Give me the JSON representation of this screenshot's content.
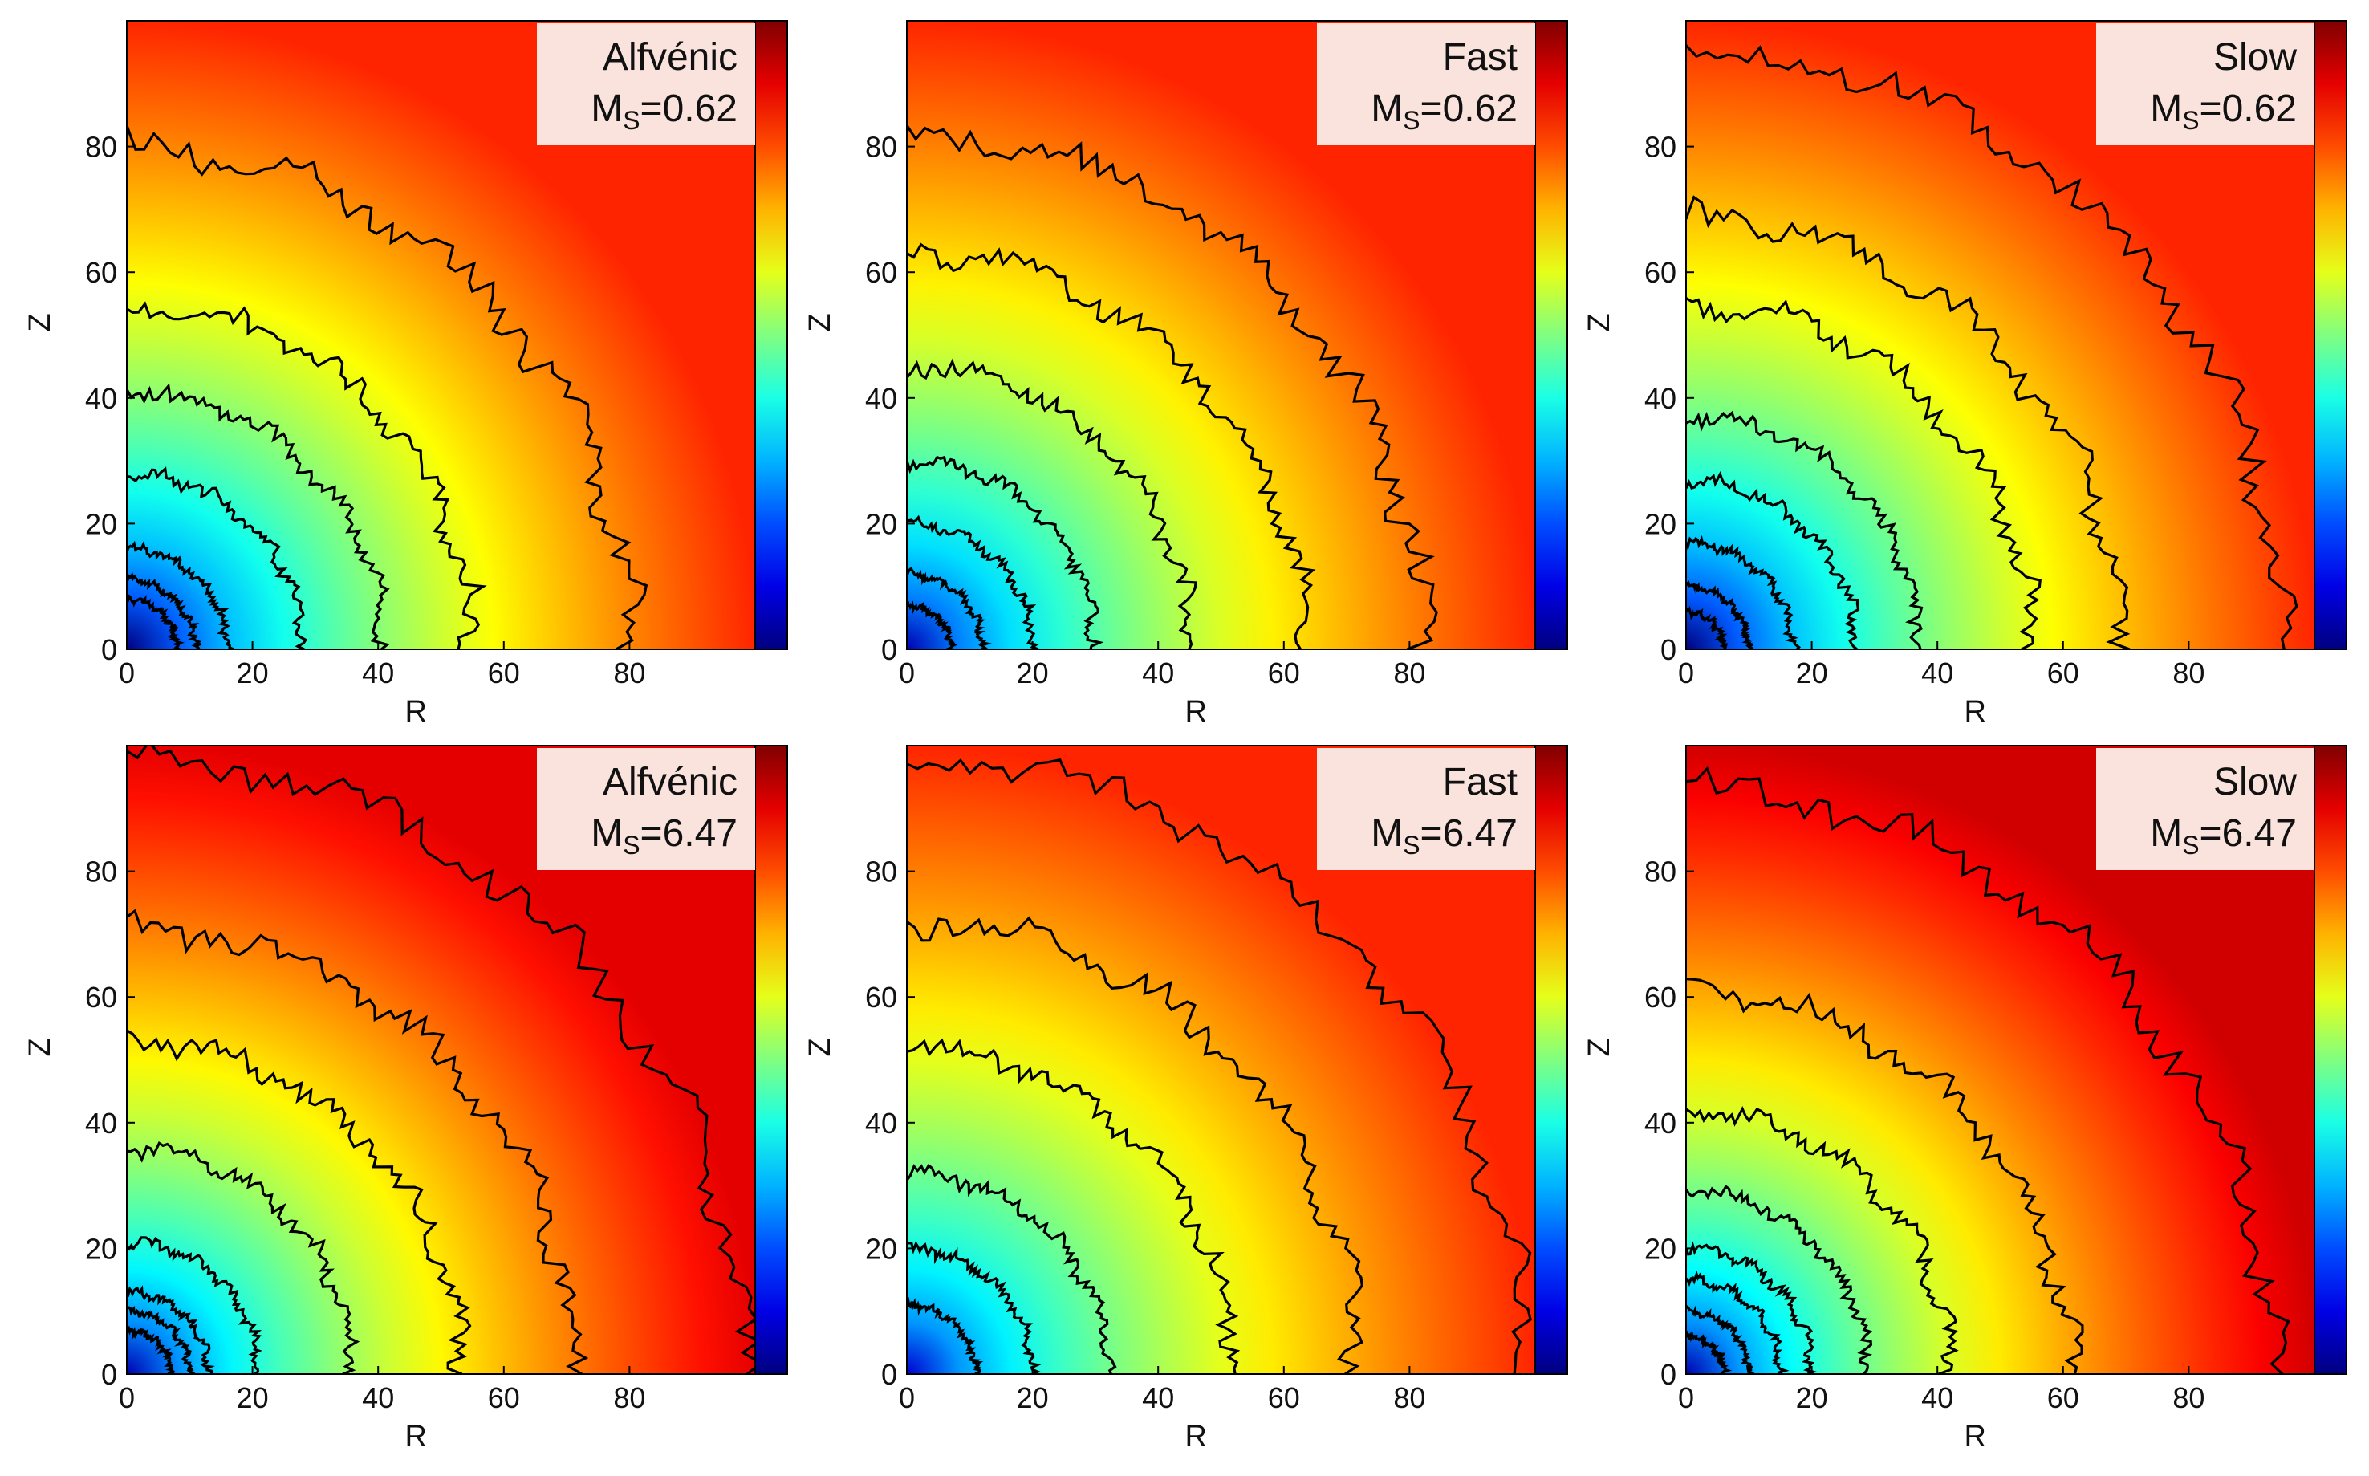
{
  "figure": {
    "kind": "contour-map-grid"
  },
  "chart_data": [
    {
      "type": "heatmap",
      "title": "Alfvénic",
      "annotation_label": "Alfvénic",
      "annotation_ms_prefix": "M",
      "annotation_ms_sub": "S",
      "annotation_ms_value": "=0.62",
      "mach": 0.62,
      "xlabel": "R",
      "ylabel": "Z",
      "xlim": [
        0,
        100
      ],
      "ylim": [
        0,
        100
      ],
      "xticks": [
        0,
        20,
        40,
        60,
        80
      ],
      "yticks": [
        0,
        20,
        40,
        60,
        80
      ],
      "colormap": "jet",
      "colorbar": true,
      "center_level": 0.0,
      "far_level": 0.84,
      "contour_radii": [
        8,
        11,
        16,
        28,
        41,
        55,
        80
      ]
    },
    {
      "type": "heatmap",
      "title": "Fast",
      "annotation_label": "Fast",
      "annotation_ms_prefix": "M",
      "annotation_ms_sub": "S",
      "annotation_ms_value": "=0.62",
      "mach": 0.62,
      "xlabel": "R",
      "ylabel": "Z",
      "xlim": [
        0,
        100
      ],
      "ylim": [
        0,
        100
      ],
      "xticks": [
        0,
        20,
        40,
        60,
        80
      ],
      "yticks": [
        0,
        20,
        40,
        60,
        80
      ],
      "colormap": "jet",
      "colorbar": true,
      "center_level": 0.05,
      "far_level": 0.84,
      "contour_radii": [
        7,
        12,
        20,
        30,
        45,
        63,
        82
      ]
    },
    {
      "type": "heatmap",
      "title": "Slow",
      "annotation_label": "Slow",
      "annotation_ms_prefix": "M",
      "annotation_ms_sub": "S",
      "annotation_ms_value": "=0.62",
      "mach": 0.62,
      "xlabel": "R",
      "ylabel": "Z",
      "xlim": [
        0,
        100
      ],
      "ylim": [
        0,
        100
      ],
      "xticks": [
        0,
        20,
        40,
        60,
        80
      ],
      "yticks": [
        0,
        20,
        40,
        60,
        80
      ],
      "colormap": "jet",
      "colorbar": true,
      "center_level": 0.0,
      "far_level": 0.84,
      "contour_radii": [
        6,
        10,
        17,
        27,
        37,
        55,
        69,
        95
      ]
    },
    {
      "type": "heatmap",
      "title": "Alfvénic",
      "annotation_label": "Alfvénic",
      "annotation_ms_prefix": "M",
      "annotation_ms_sub": "S",
      "annotation_ms_value": "=6.47",
      "mach": 6.47,
      "xlabel": "R",
      "ylabel": "Z",
      "xlim": [
        0,
        100
      ],
      "ylim": [
        0,
        100
      ],
      "xticks": [
        0,
        20,
        40,
        60,
        80
      ],
      "yticks": [
        0,
        20,
        40,
        60,
        80
      ],
      "colormap": "jet",
      "colorbar": true,
      "center_level": 0.05,
      "far_level": 0.9,
      "contour_radii": [
        7,
        10,
        13,
        21,
        36,
        53,
        71,
        98
      ]
    },
    {
      "type": "heatmap",
      "title": "Fast",
      "annotation_label": "Fast",
      "annotation_ms_prefix": "M",
      "annotation_ms_sub": "S",
      "annotation_ms_value": "=6.47",
      "mach": 6.47,
      "xlabel": "R",
      "ylabel": "Z",
      "xlim": [
        0,
        100
      ],
      "ylim": [
        0,
        100
      ],
      "xticks": [
        0,
        20,
        40,
        60,
        80
      ],
      "yticks": [
        0,
        20,
        40,
        60,
        80
      ],
      "colormap": "jet",
      "colorbar": true,
      "center_level": 0.08,
      "far_level": 0.84,
      "contour_radii": [
        11,
        20,
        32,
        52,
        72,
        98
      ]
    },
    {
      "type": "heatmap",
      "title": "Slow",
      "annotation_label": "Slow",
      "annotation_ms_prefix": "M",
      "annotation_ms_sub": "S",
      "annotation_ms_value": "=6.47",
      "mach": 6.47,
      "xlabel": "R",
      "ylabel": "Z",
      "xlim": [
        0,
        100
      ],
      "ylim": [
        0,
        100
      ],
      "xticks": [
        0,
        20,
        40,
        60,
        80
      ],
      "yticks": [
        0,
        20,
        40,
        60,
        80
      ],
      "colormap": "jet",
      "colorbar": true,
      "center_level": 0.05,
      "far_level": 0.92,
      "contour_radii": [
        6,
        10,
        15,
        20,
        29,
        42,
        61,
        93
      ]
    }
  ]
}
